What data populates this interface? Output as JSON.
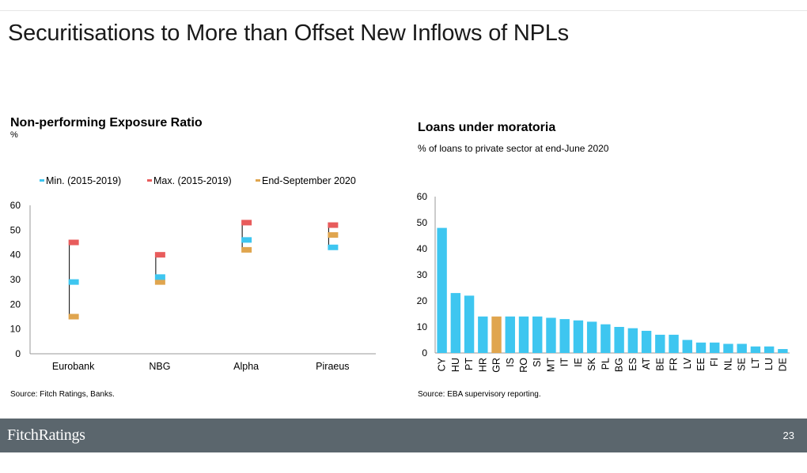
{
  "page": {
    "title": "Securitisations to More than Offset New Inflows of NPLs",
    "brand": "FitchRatings",
    "page_number": "23"
  },
  "left_chart": {
    "title": "Non-performing Exposure Ratio",
    "unit": "%",
    "source": "Source: Fitch Ratings, Banks."
  },
  "right_chart": {
    "title": "Loans under moratoria",
    "subtitle": "% of loans to private sector at end-June 2020",
    "source": "Source: EBA supervisory reporting."
  },
  "colors": {
    "min": "#3ec6f0",
    "max": "#e85c5c",
    "end": "#e0a54e",
    "bar": "#3ec6f0",
    "highlight": "#e0a54e",
    "footer": "#5b666d"
  },
  "chart_data": [
    {
      "type": "scatter",
      "categories": [
        "Eurobank",
        "NBG",
        "Alpha",
        "Piraeus"
      ],
      "series": [
        {
          "name": "Min. (2015-2019)",
          "values": [
            29,
            31,
            46,
            43
          ]
        },
        {
          "name": "Max. (2015-2019)",
          "values": [
            45,
            40,
            53,
            52
          ]
        },
        {
          "name": "End-September 2020",
          "values": [
            15,
            29,
            42,
            48
          ]
        }
      ],
      "range_line": {
        "low": [
          15,
          29,
          42,
          43
        ],
        "high": [
          45,
          40,
          53,
          52
        ]
      },
      "ylim": [
        0,
        60
      ],
      "yticks": [
        0,
        10,
        20,
        30,
        40,
        50,
        60
      ],
      "legend_position": "top",
      "grid": false
    },
    {
      "type": "bar",
      "categories": [
        "CY",
        "HU",
        "PT",
        "HR",
        "GR",
        "IS",
        "RO",
        "SI",
        "MT",
        "IT",
        "IE",
        "SK",
        "PL",
        "BG",
        "ES",
        "AT",
        "BE",
        "FR",
        "LV",
        "EE",
        "FI",
        "NL",
        "SE",
        "LT",
        "LU",
        "DE"
      ],
      "values": [
        48,
        23,
        22,
        14,
        14,
        14,
        14,
        14,
        13.5,
        13,
        12.5,
        12,
        11,
        10,
        9.5,
        8.5,
        7,
        7,
        5,
        4,
        4,
        3.5,
        3.5,
        2.5,
        2.5,
        1.5
      ],
      "highlight_category": "GR",
      "ylim": [
        0,
        60
      ],
      "yticks": [
        0,
        10,
        20,
        30,
        40,
        50,
        60
      ],
      "grid": false
    }
  ]
}
